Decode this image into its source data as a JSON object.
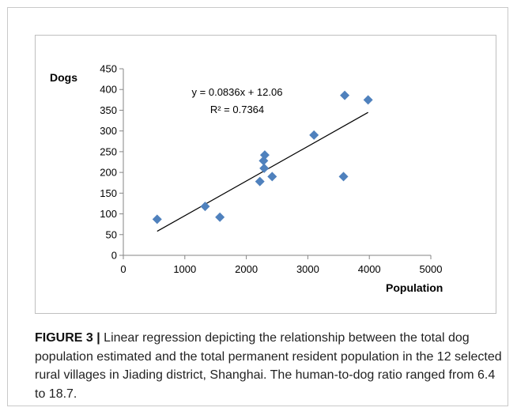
{
  "caption": {
    "label": "FIGURE 3 |",
    "text": " Linear regression depicting the relationship between the total dog population estimated and the total permanent resident population in the 12 selected rural villages in Jiading district, Shanghai. The human-to-dog ratio ranged from 6.4 to 18.7."
  },
  "chart_data": {
    "type": "scatter",
    "xlabel": "Population",
    "ylabel": "Dogs",
    "xlim": [
      0,
      5000
    ],
    "ylim": [
      0,
      450
    ],
    "xticks": [
      0,
      1000,
      2000,
      3000,
      4000,
      5000
    ],
    "yticks": [
      0,
      50,
      100,
      150,
      200,
      250,
      300,
      350,
      400,
      450
    ],
    "marker_color": "#4f81bd",
    "marker": "diamond",
    "grid": false,
    "points": [
      {
        "x": 550,
        "y": 87
      },
      {
        "x": 1330,
        "y": 118
      },
      {
        "x": 1570,
        "y": 92
      },
      {
        "x": 2220,
        "y": 178
      },
      {
        "x": 2280,
        "y": 228
      },
      {
        "x": 2300,
        "y": 242
      },
      {
        "x": 2290,
        "y": 210
      },
      {
        "x": 2420,
        "y": 190
      },
      {
        "x": 3100,
        "y": 290
      },
      {
        "x": 3580,
        "y": 190
      },
      {
        "x": 3600,
        "y": 386
      },
      {
        "x": 3980,
        "y": 375
      }
    ],
    "trendline": {
      "slope": 0.0836,
      "intercept": 12.06,
      "x_range": [
        550,
        3980
      ],
      "equation": "y = 0.0836x + 12.06",
      "r_squared": "R² = 0.7364"
    }
  }
}
